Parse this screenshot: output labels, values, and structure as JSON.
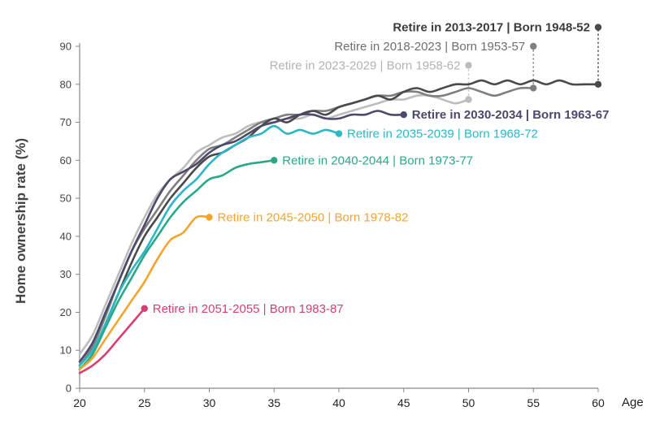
{
  "chart_data": {
    "type": "line",
    "title": "",
    "xlabel": "Age",
    "ylabel": "Home ownership rate (%)",
    "xlim": [
      20,
      60
    ],
    "ylim": [
      0,
      90
    ],
    "xticks": [
      20,
      25,
      30,
      35,
      40,
      45,
      50,
      55,
      60
    ],
    "yticks": [
      0,
      10,
      20,
      30,
      40,
      50,
      60,
      70,
      80,
      90
    ],
    "series": [
      {
        "name": "Retire in 2013-2017 | Born 1948-52",
        "color": "#4a4a4a",
        "x": [
          20,
          21,
          22,
          23,
          24,
          25,
          26,
          27,
          28,
          29,
          30,
          31,
          32,
          33,
          34,
          35,
          36,
          37,
          38,
          39,
          40,
          41,
          42,
          43,
          44,
          45,
          46,
          47,
          48,
          49,
          50,
          51,
          52,
          53,
          54,
          55,
          56,
          57,
          58,
          59,
          60
        ],
        "y": [
          5,
          9,
          17,
          25,
          33,
          40,
          45,
          50,
          54,
          58,
          61,
          62,
          64,
          66,
          69,
          71,
          70,
          72,
          73,
          72,
          74,
          75,
          76,
          77,
          76,
          78,
          79,
          78,
          79,
          80,
          80,
          81,
          80,
          81,
          80,
          81,
          80,
          81,
          80,
          80,
          80
        ],
        "marker": {
          "x": 60,
          "y": 95
        },
        "marker_end": {
          "x": 60,
          "y": 80
        }
      },
      {
        "name": "Retire in 2018-2023 | Born 1953-57",
        "color": "#7f7f7f",
        "x": [
          20,
          21,
          22,
          23,
          24,
          25,
          26,
          27,
          28,
          29,
          30,
          31,
          32,
          33,
          34,
          35,
          36,
          37,
          38,
          39,
          40,
          41,
          42,
          43,
          44,
          45,
          46,
          47,
          48,
          49,
          50,
          51,
          52,
          53,
          54,
          55
        ],
        "y": [
          6,
          11,
          19,
          28,
          36,
          42,
          47,
          52,
          56,
          60,
          63,
          64,
          66,
          68,
          70,
          71,
          72,
          72,
          73,
          73,
          74,
          75,
          76,
          77,
          77,
          78,
          78,
          77,
          77,
          78,
          79,
          78,
          77,
          78,
          79,
          79
        ],
        "marker": {
          "x": 55,
          "y": 90
        },
        "marker_end": {
          "x": 55,
          "y": 79
        }
      },
      {
        "name": "Retire in 2023-2029 | Born 1958-62",
        "color": "#bdbdbd",
        "x": [
          20,
          21,
          22,
          23,
          24,
          25,
          26,
          27,
          28,
          29,
          30,
          31,
          32,
          33,
          34,
          35,
          36,
          37,
          38,
          39,
          40,
          41,
          42,
          43,
          44,
          45,
          46,
          47,
          48,
          49,
          50
        ],
        "y": [
          9,
          14,
          22,
          30,
          38,
          45,
          51,
          55,
          58,
          62,
          64,
          66,
          67,
          69,
          70,
          70,
          71,
          71,
          72,
          71,
          72,
          73,
          74,
          75,
          76,
          76,
          77,
          77,
          76,
          75,
          76
        ],
        "marker": {
          "x": 50,
          "y": 85
        },
        "marker_end": {
          "x": 50,
          "y": 76
        }
      },
      {
        "name": "Retire in 2030-2034 | Born 1963-67",
        "color": "#4b4a6a",
        "x": [
          20,
          21,
          22,
          23,
          24,
          25,
          26,
          27,
          28,
          29,
          30,
          31,
          32,
          33,
          34,
          35,
          36,
          37,
          38,
          39,
          40,
          41,
          42,
          43,
          44,
          45
        ],
        "y": [
          7,
          12,
          20,
          28,
          36,
          43,
          50,
          55,
          57,
          59,
          62,
          64,
          65,
          67,
          69,
          70,
          71,
          72,
          72,
          71,
          71,
          72,
          72,
          73,
          72,
          72
        ],
        "marker": {
          "x": 45,
          "y": 72
        }
      },
      {
        "name": "Retire in 2035-2039 | Born 1968-72",
        "color": "#2bb7c4",
        "x": [
          20,
          21,
          22,
          23,
          24,
          25,
          26,
          27,
          28,
          29,
          30,
          31,
          32,
          33,
          34,
          35,
          36,
          37,
          38,
          39,
          40
        ],
        "y": [
          6,
          10,
          17,
          25,
          31,
          36,
          42,
          48,
          52,
          55,
          59,
          62,
          64,
          66,
          67,
          69,
          67,
          68,
          67,
          68,
          67
        ],
        "marker": {
          "x": 40,
          "y": 67
        }
      },
      {
        "name": "Retire in 2040-2044 | Born 1973-77",
        "color": "#2aa88a",
        "x": [
          20,
          21,
          22,
          23,
          24,
          25,
          26,
          27,
          28,
          29,
          30,
          31,
          32,
          33,
          34,
          35
        ],
        "y": [
          5,
          9,
          16,
          23,
          29,
          35,
          40,
          45,
          49,
          52,
          55,
          56,
          58,
          59,
          59.5,
          60
        ],
        "marker": {
          "x": 35,
          "y": 60
        }
      },
      {
        "name": "Retire in 2045-2050 | Born 1978-82",
        "color": "#f5a52c",
        "x": [
          20,
          21,
          22,
          23,
          24,
          25,
          26,
          27,
          28,
          29,
          30
        ],
        "y": [
          5,
          8,
          13,
          18,
          23,
          28,
          34,
          39,
          41,
          45,
          45
        ],
        "marker": {
          "x": 30,
          "y": 45
        }
      },
      {
        "name": "Retire in 2051-2055 | Born 1983-87",
        "color": "#d63f6f",
        "x": [
          20,
          21,
          22,
          23,
          24,
          25
        ],
        "y": [
          4,
          6,
          9,
          13,
          17,
          21
        ],
        "marker": {
          "x": 25,
          "y": 21
        }
      }
    ],
    "annotations": [
      {
        "series": 0,
        "left": "Retire in 2013-2017",
        "right": "Born 1948-52",
        "color": "#3c3c3c",
        "bold": true
      },
      {
        "series": 1,
        "left": "Retire in 2018-2023",
        "right": "Born 1953-57",
        "color": "#6e6e6e",
        "bold": false
      },
      {
        "series": 2,
        "left": "Retire in 2023-2029",
        "right": "Born 1958-62",
        "color": "#b3b3b3",
        "bold": false
      },
      {
        "series": 3,
        "left": "Retire in 2030-2034",
        "right": "Born 1963-67",
        "color": "#4b4a6a",
        "bold": true
      },
      {
        "series": 4,
        "left": "Retire in 2035-2039",
        "right": "Born 1968-72",
        "color": "#2bb7c4",
        "bold": false
      },
      {
        "series": 5,
        "left": "Retire in 2040-2044",
        "right": "Born 1973-77",
        "color": "#2aa88a",
        "bold": false
      },
      {
        "series": 6,
        "left": "Retire in 2045-2050",
        "right": "Born 1978-82",
        "color": "#f5a52c",
        "bold": false
      },
      {
        "series": 7,
        "left": "Retire in 2051-2055",
        "right": "Born 1983-87",
        "color": "#d63f6f",
        "bold": false
      }
    ]
  }
}
